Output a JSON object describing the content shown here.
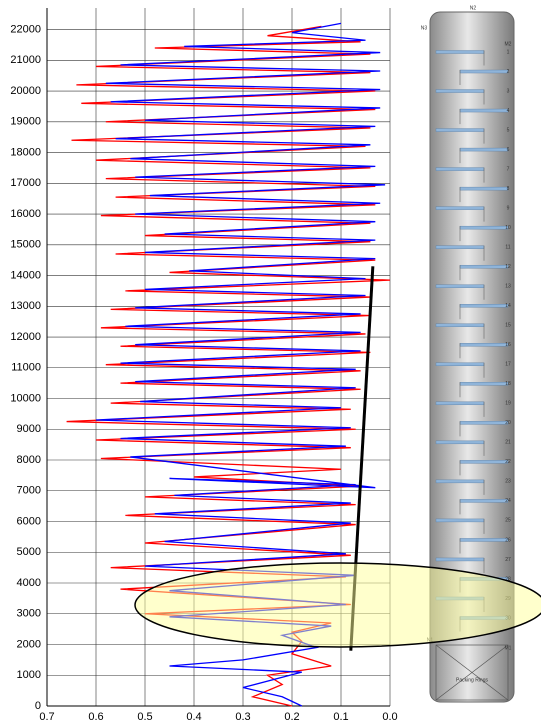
{
  "chart_data": {
    "type": "line",
    "xlim": [
      0.7,
      0.0
    ],
    "ylim": [
      0,
      22700
    ],
    "xticks": [
      0.7,
      0.6,
      0.5,
      0.4,
      0.3,
      0.2,
      0.1,
      {
        "value": 0,
        "label": "0.0"
      }
    ],
    "yticks": [
      0,
      1000,
      2000,
      3000,
      4000,
      5000,
      6000,
      7000,
      8000,
      9000,
      10000,
      11000,
      12000,
      13000,
      14000,
      15000,
      16000,
      17000,
      18000,
      19000,
      20000,
      21000,
      22000
    ],
    "grid": true,
    "series": [
      {
        "color": "#ff0000",
        "x": [
          0.14,
          0.25,
          0.06,
          0.48,
          0.04,
          0.6,
          0.04,
          0.64,
          0.03,
          0.63,
          0.03,
          0.58,
          0.04,
          0.65,
          0.05,
          0.6,
          0.04,
          0.58,
          0.03,
          0.56,
          0.03,
          0.59,
          0.04,
          0.5,
          0.04,
          0.56,
          0.03,
          0.45,
          0.0,
          0.54,
          0.04,
          0.57,
          0.04,
          0.59,
          0.05,
          0.55,
          0.04,
          0.58,
          0.06,
          0.55,
          0.06,
          0.57,
          0.08,
          0.66,
          0.07,
          0.6,
          0.08,
          0.59,
          0.1,
          0.4,
          0.06,
          0.5,
          0.07,
          0.54,
          0.07,
          0.5,
          0.08,
          0.57,
          0.09,
          0.55,
          0.08,
          0.5,
          0.12,
          0.2,
          0.18,
          0.2,
          0.12,
          0.25,
          0.22,
          0.28,
          0.2
        ],
        "values": [
          22100,
          21800,
          21600,
          21400,
          21200,
          20800,
          20600,
          20200,
          20000,
          19600,
          19400,
          19000,
          18800,
          18400,
          18200,
          17750,
          17500,
          17150,
          16900,
          16550,
          16300,
          15950,
          15700,
          15300,
          15100,
          14700,
          14500,
          14100,
          13850,
          13500,
          13300,
          12900,
          12700,
          12300,
          12100,
          11700,
          11500,
          11100,
          10900,
          10500,
          10300,
          9850,
          9650,
          9250,
          9000,
          8650,
          8400,
          8050,
          7700,
          7450,
          7150,
          6800,
          6550,
          6200,
          5900,
          5300,
          4900,
          4500,
          4200,
          3800,
          3300,
          3000,
          2700,
          2400,
          2100,
          1700,
          1300,
          1000,
          700,
          300,
          0
        ]
      },
      {
        "color": "#0000ff",
        "x": [
          0.1,
          0.2,
          0.05,
          0.42,
          0.02,
          0.55,
          0.02,
          0.58,
          0.02,
          0.57,
          0.02,
          0.5,
          0.03,
          0.56,
          0.04,
          0.53,
          0.03,
          0.52,
          0.01,
          0.49,
          0.02,
          0.52,
          0.03,
          0.46,
          0.03,
          0.5,
          0.03,
          0.41,
          0.05,
          0.5,
          0.05,
          0.52,
          0.06,
          0.54,
          0.06,
          0.52,
          0.06,
          0.55,
          0.07,
          0.52,
          0.07,
          0.51,
          0.1,
          0.6,
          0.08,
          0.55,
          0.09,
          0.53,
          0.03,
          0.45,
          0.07,
          0.44,
          0.08,
          0.48,
          0.08,
          0.46,
          0.09,
          0.5,
          0.07,
          0.45,
          0.09,
          0.45,
          0.12,
          0.22,
          0.15,
          0.3,
          0.45,
          0.18,
          0.3,
          0.22,
          0.18
        ],
        "values": [
          22200,
          21900,
          21650,
          21450,
          21250,
          20850,
          20650,
          20250,
          20050,
          19650,
          19450,
          19050,
          18850,
          18450,
          18250,
          17800,
          17550,
          17200,
          16950,
          16600,
          16350,
          16000,
          15750,
          15350,
          15150,
          14750,
          14550,
          14150,
          13900,
          13550,
          13350,
          12950,
          12750,
          12350,
          12150,
          11750,
          11550,
          11150,
          10950,
          10550,
          10350,
          9900,
          9700,
          9300,
          9050,
          8700,
          8450,
          8100,
          7100,
          7400,
          7200,
          6850,
          6600,
          6250,
          5950,
          5350,
          4950,
          4550,
          4250,
          3750,
          3300,
          2900,
          2600,
          2300,
          1900,
          1500,
          1300,
          1100,
          600,
          300,
          0
        ]
      },
      {
        "color": "#000000",
        "x": [
          0.08,
          0.035
        ],
        "values": [
          1800,
          14300
        ]
      }
    ]
  },
  "column": {
    "nozzles": [
      "N2",
      "N3",
      "M2",
      "M1",
      "N1"
    ],
    "trays": [
      "1",
      "2",
      "3",
      "4",
      "5",
      "6",
      "7",
      "8",
      "9",
      "10",
      "11",
      "12",
      "13",
      "14",
      "15",
      "16",
      "17",
      "18",
      "19",
      "20",
      "21",
      "22",
      "23",
      "24",
      "25",
      "26",
      "27",
      "28",
      "29",
      "30"
    ],
    "packing": "Packing Rings"
  }
}
